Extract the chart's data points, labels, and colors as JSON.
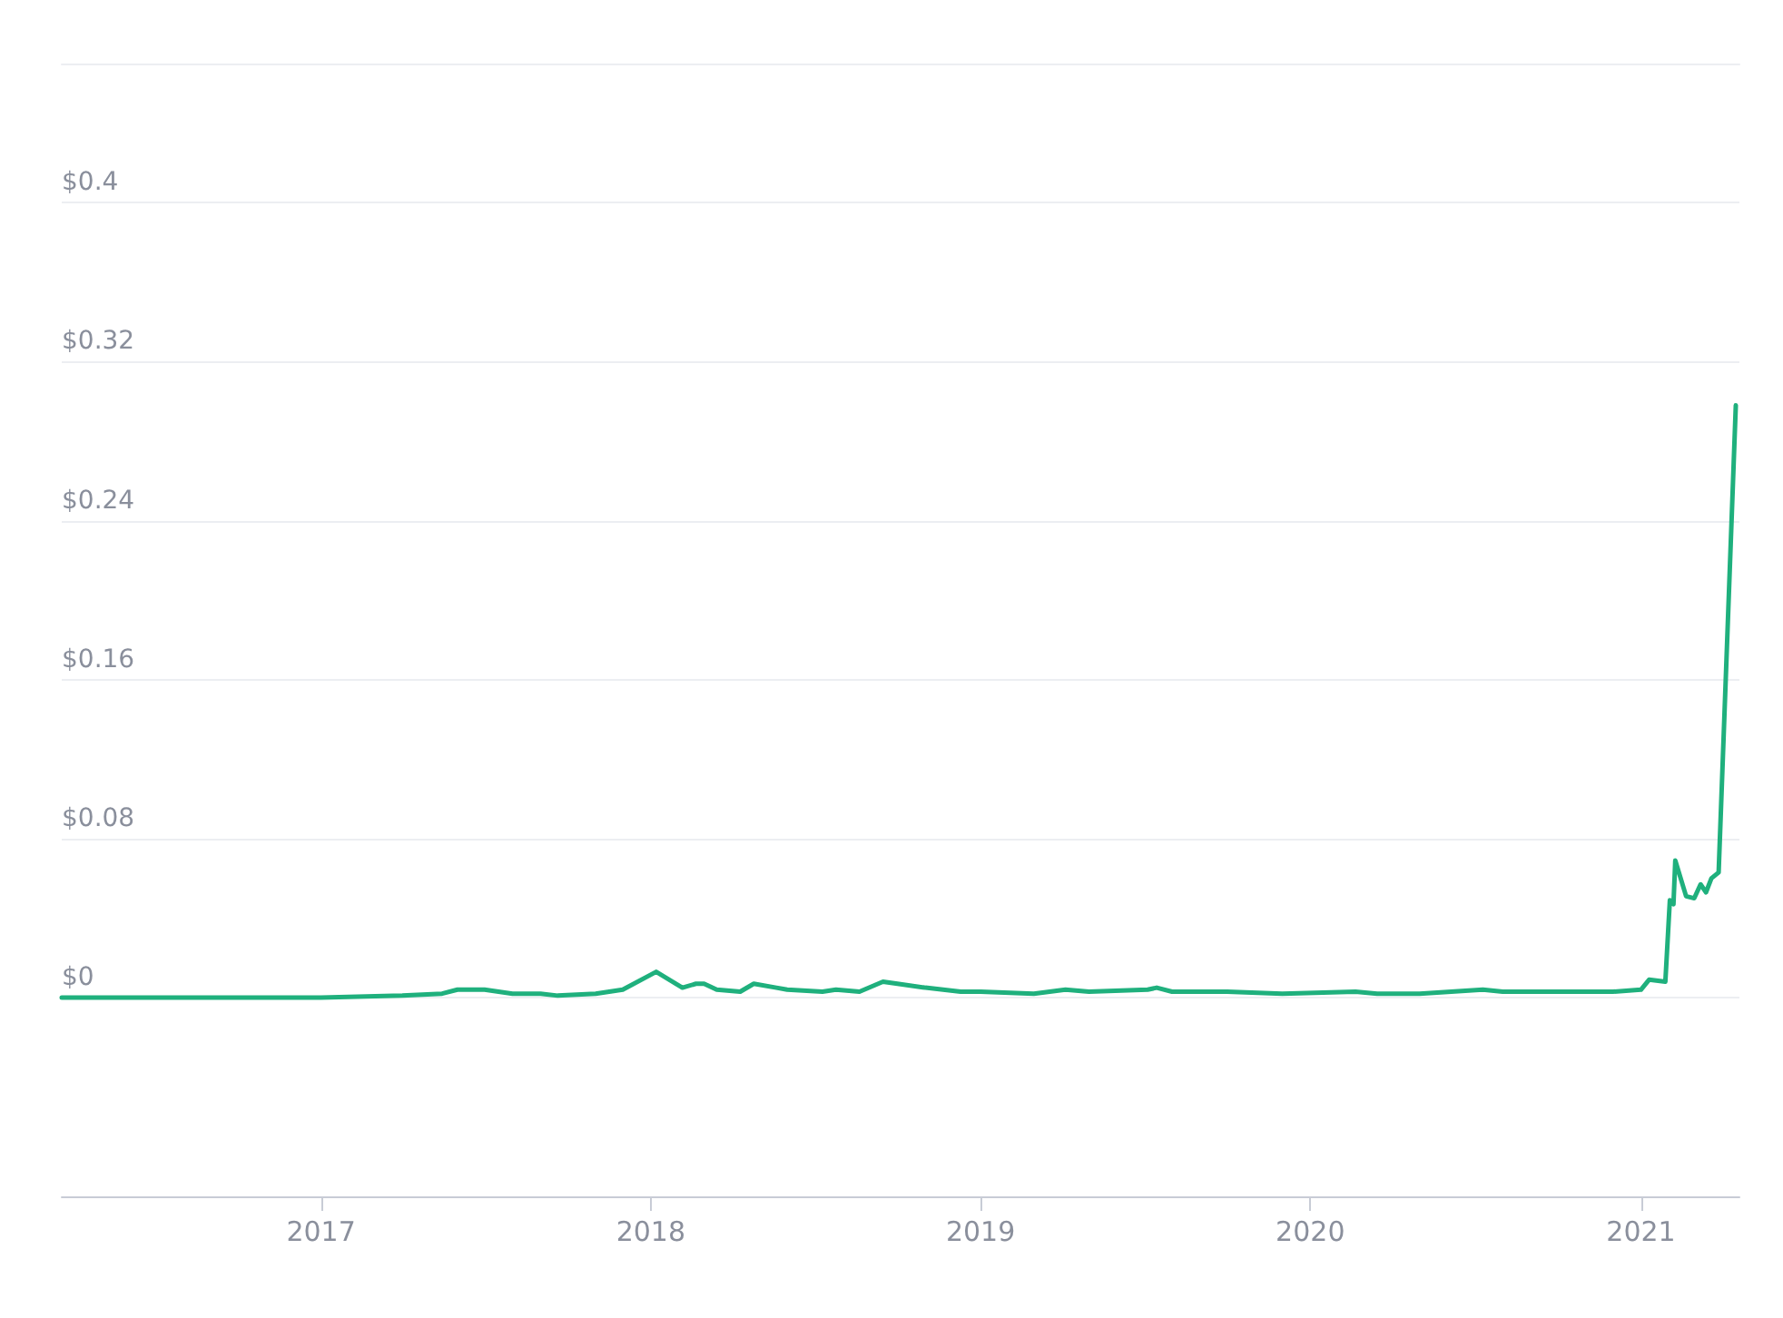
{
  "chart_data": {
    "type": "line",
    "color": "#1fb07d",
    "xlim": [
      "2016-03-20",
      "2021-04-20"
    ],
    "xticks": [
      {
        "value": "2017-01-01",
        "label": "2017"
      },
      {
        "value": "2018-01-01",
        "label": "2018"
      },
      {
        "value": "2019-01-01",
        "label": "2019"
      },
      {
        "value": "2020-01-01",
        "label": "2020"
      },
      {
        "value": "2021-01-01",
        "label": "2021"
      }
    ],
    "ylim": [
      -0.1,
      0.47
    ],
    "yticks": [
      {
        "value": 0,
        "label": "$0"
      },
      {
        "value": 0.08,
        "label": "$0.08"
      },
      {
        "value": 0.16,
        "label": "$0.16"
      },
      {
        "value": 0.24,
        "label": "$0.24"
      },
      {
        "value": 0.32,
        "label": "$0.32"
      },
      {
        "value": 0.4,
        "label": "$0.4"
      }
    ],
    "grid": "y",
    "marker": "none",
    "x": [
      "2016-03-20",
      "2017-01-01",
      "2017-04-01",
      "2017-05-15",
      "2017-06-01",
      "2017-07-01",
      "2017-08-01",
      "2017-09-01",
      "2017-09-20",
      "2017-11-01",
      "2017-12-01",
      "2018-01-07",
      "2018-02-05",
      "2018-02-20",
      "2018-03-01",
      "2018-03-15",
      "2018-04-10",
      "2018-04-25",
      "2018-05-20",
      "2018-06-01",
      "2018-07-10",
      "2018-07-25",
      "2018-08-20",
      "2018-09-15",
      "2018-10-01",
      "2018-11-01",
      "2018-12-10",
      "2019-01-01",
      "2019-03-01",
      "2019-04-05",
      "2019-05-01",
      "2019-07-05",
      "2019-07-15",
      "2019-08-01",
      "2019-10-01",
      "2019-12-01",
      "2020-02-20",
      "2020-03-15",
      "2020-05-01",
      "2020-07-10",
      "2020-08-01",
      "2020-10-01",
      "2020-12-01",
      "2021-01-01",
      "2021-01-10",
      "2021-01-28",
      "2021-02-02",
      "2021-02-06",
      "2021-02-08",
      "2021-02-20",
      "2021-03-01",
      "2021-03-08",
      "2021-03-14",
      "2021-03-20",
      "2021-03-28",
      "2021-04-16"
    ],
    "values": [
      0,
      0,
      0.001,
      0.002,
      0.004,
      0.004,
      0.002,
      0.002,
      0.001,
      0.002,
      0.004,
      0.013,
      0.005,
      0.007,
      0.007,
      0.004,
      0.003,
      0.007,
      0.005,
      0.004,
      0.003,
      0.004,
      0.003,
      0.008,
      0.007,
      0.005,
      0.003,
      0.003,
      0.002,
      0.004,
      0.003,
      0.004,
      0.005,
      0.003,
      0.003,
      0.002,
      0.003,
      0.002,
      0.002,
      0.004,
      0.003,
      0.003,
      0.003,
      0.004,
      0.009,
      0.008,
      0.049,
      0.047,
      0.069,
      0.051,
      0.05,
      0.057,
      0.053,
      0.06,
      0.063,
      0.298
    ]
  }
}
